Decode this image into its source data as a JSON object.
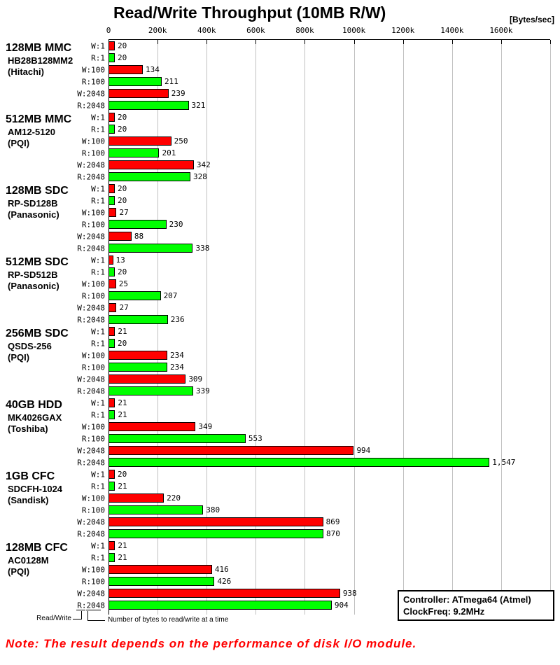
{
  "header": {
    "title": "Read/Write Throughput (10MB R/W)",
    "unit_label": "[Bytes/sec]"
  },
  "chart_data": {
    "type": "bar",
    "orientation": "horizontal",
    "title": "Read/Write Throughput (10MB R/W)",
    "x_axis_unit": "Bytes/sec",
    "x_ticks": [
      "0",
      "200k",
      "400k",
      "600k",
      "800k",
      "1000k",
      "1200k",
      "1400k",
      "1600k"
    ],
    "x_max_k": 1800,
    "grid": true,
    "bar_labels": [
      "W:1",
      "R:1",
      "W:100",
      "R:100",
      "W:2048",
      "R:2048"
    ],
    "colors": {
      "write": "#ff0000",
      "read": "#00ff00"
    },
    "values_unit": "kBytes/sec (bar labels shown in k)",
    "groups": [
      {
        "name": "128MB MMC",
        "model": "HB28B128MM2",
        "maker": "(Hitachi)",
        "values": [
          20,
          20,
          134,
          211,
          239,
          321
        ]
      },
      {
        "name": "512MB MMC",
        "model": "AM12-5120",
        "maker": "(PQI)",
        "values": [
          20,
          20,
          250,
          201,
          342,
          328
        ]
      },
      {
        "name": "128MB SDC",
        "model": "RP-SD128B",
        "maker": "(Panasonic)",
        "values": [
          20,
          20,
          27,
          230,
          88,
          338
        ]
      },
      {
        "name": "512MB SDC",
        "model": "RP-SD512B",
        "maker": "(Panasonic)",
        "values": [
          13,
          20,
          25,
          207,
          27,
          236
        ]
      },
      {
        "name": "256MB SDC",
        "model": "QSDS-256",
        "maker": "(PQI)",
        "values": [
          21,
          20,
          234,
          234,
          309,
          339
        ]
      },
      {
        "name": "40GB HDD",
        "model": "MK4026GAX",
        "maker": "(Toshiba)",
        "values": [
          21,
          21,
          349,
          553,
          994,
          1547
        ]
      },
      {
        "name": "1GB CFC",
        "model": "SDCFH-1024",
        "maker": "(Sandisk)",
        "values": [
          20,
          21,
          220,
          380,
          869,
          870
        ]
      },
      {
        "name": "128MB CFC",
        "model": "AC0128M",
        "maker": "(PQI)",
        "values": [
          21,
          21,
          416,
          426,
          938,
          904
        ]
      }
    ]
  },
  "legend": {
    "read_write_label": "Read/Write",
    "bytes_label": "Number of bytes to read/write at a time"
  },
  "info_box": {
    "line1": "Controller: ATmega64 (Atmel)",
    "line2": "ClockFreq: 9.2MHz"
  },
  "note": "Note: The result depends on the performance of disk I/O module."
}
